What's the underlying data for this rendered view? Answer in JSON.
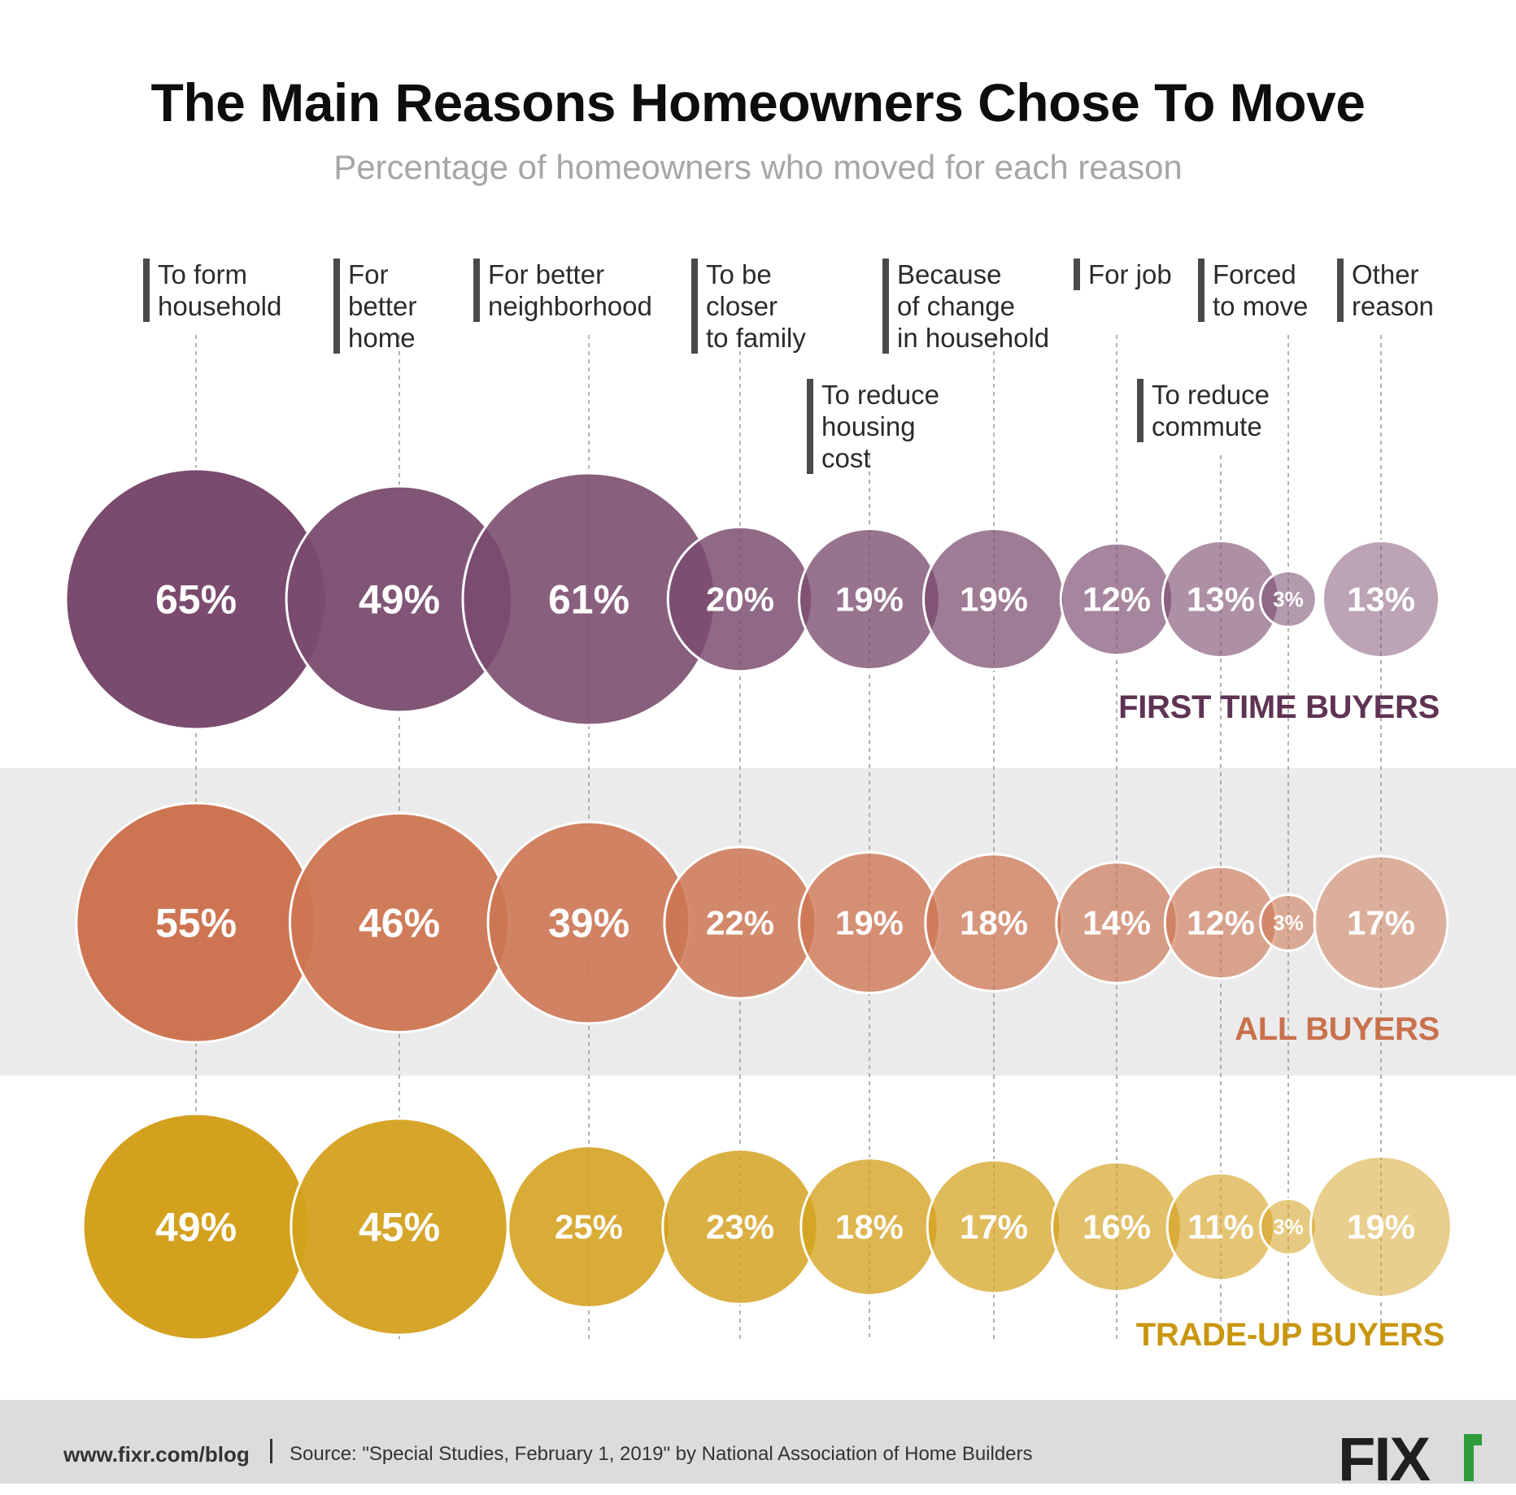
{
  "title": "The Main Reasons Homeowners Chose To Move",
  "subtitle": "Percentage of homeowners who moved for each reason",
  "chart_data": {
    "type": "bubble",
    "title": "The Main Reasons Homeowners Chose To Move",
    "subtitle": "Percentage of homeowners who moved for each reason",
    "unit": "%",
    "categories": [
      "To form household",
      "For better home",
      "For better neighborhood",
      "To be closer to family",
      "To reduce housing cost",
      "Because of change in household",
      "For job",
      "To reduce commute",
      "Forced to move",
      "Other reason"
    ],
    "category_lines": [
      [
        "To form",
        "household"
      ],
      [
        "For",
        "better",
        "home"
      ],
      [
        "For better",
        "neighborhood"
      ],
      [
        "To be",
        "closer",
        "to family"
      ],
      [
        "To reduce",
        "housing",
        "cost"
      ],
      [
        "Because",
        "of change",
        "in household"
      ],
      [
        "For job"
      ],
      [
        "To reduce",
        "commute"
      ],
      [
        "Forced",
        "to move"
      ],
      [
        "Other",
        "reason"
      ]
    ],
    "series": [
      {
        "name": "FIRST TIME BUYERS",
        "values": [
          65,
          49,
          61,
          20,
          19,
          19,
          12,
          13,
          3,
          13
        ],
        "color": "#7a4b6e"
      },
      {
        "name": "ALL BUYERS",
        "values": [
          55,
          46,
          39,
          22,
          19,
          18,
          14,
          12,
          3,
          17
        ],
        "color": "#cd7552"
      },
      {
        "name": "TRADE-UP BUYERS",
        "values": [
          49,
          45,
          25,
          23,
          18,
          17,
          16,
          11,
          3,
          19
        ],
        "color": "#d4a11e"
      }
    ]
  },
  "footer": {
    "site": "www.fixr.com/blog",
    "source": "Source: \"Special Studies, February 1, 2019\" by National Association of Home Builders",
    "logo": "FIX"
  }
}
